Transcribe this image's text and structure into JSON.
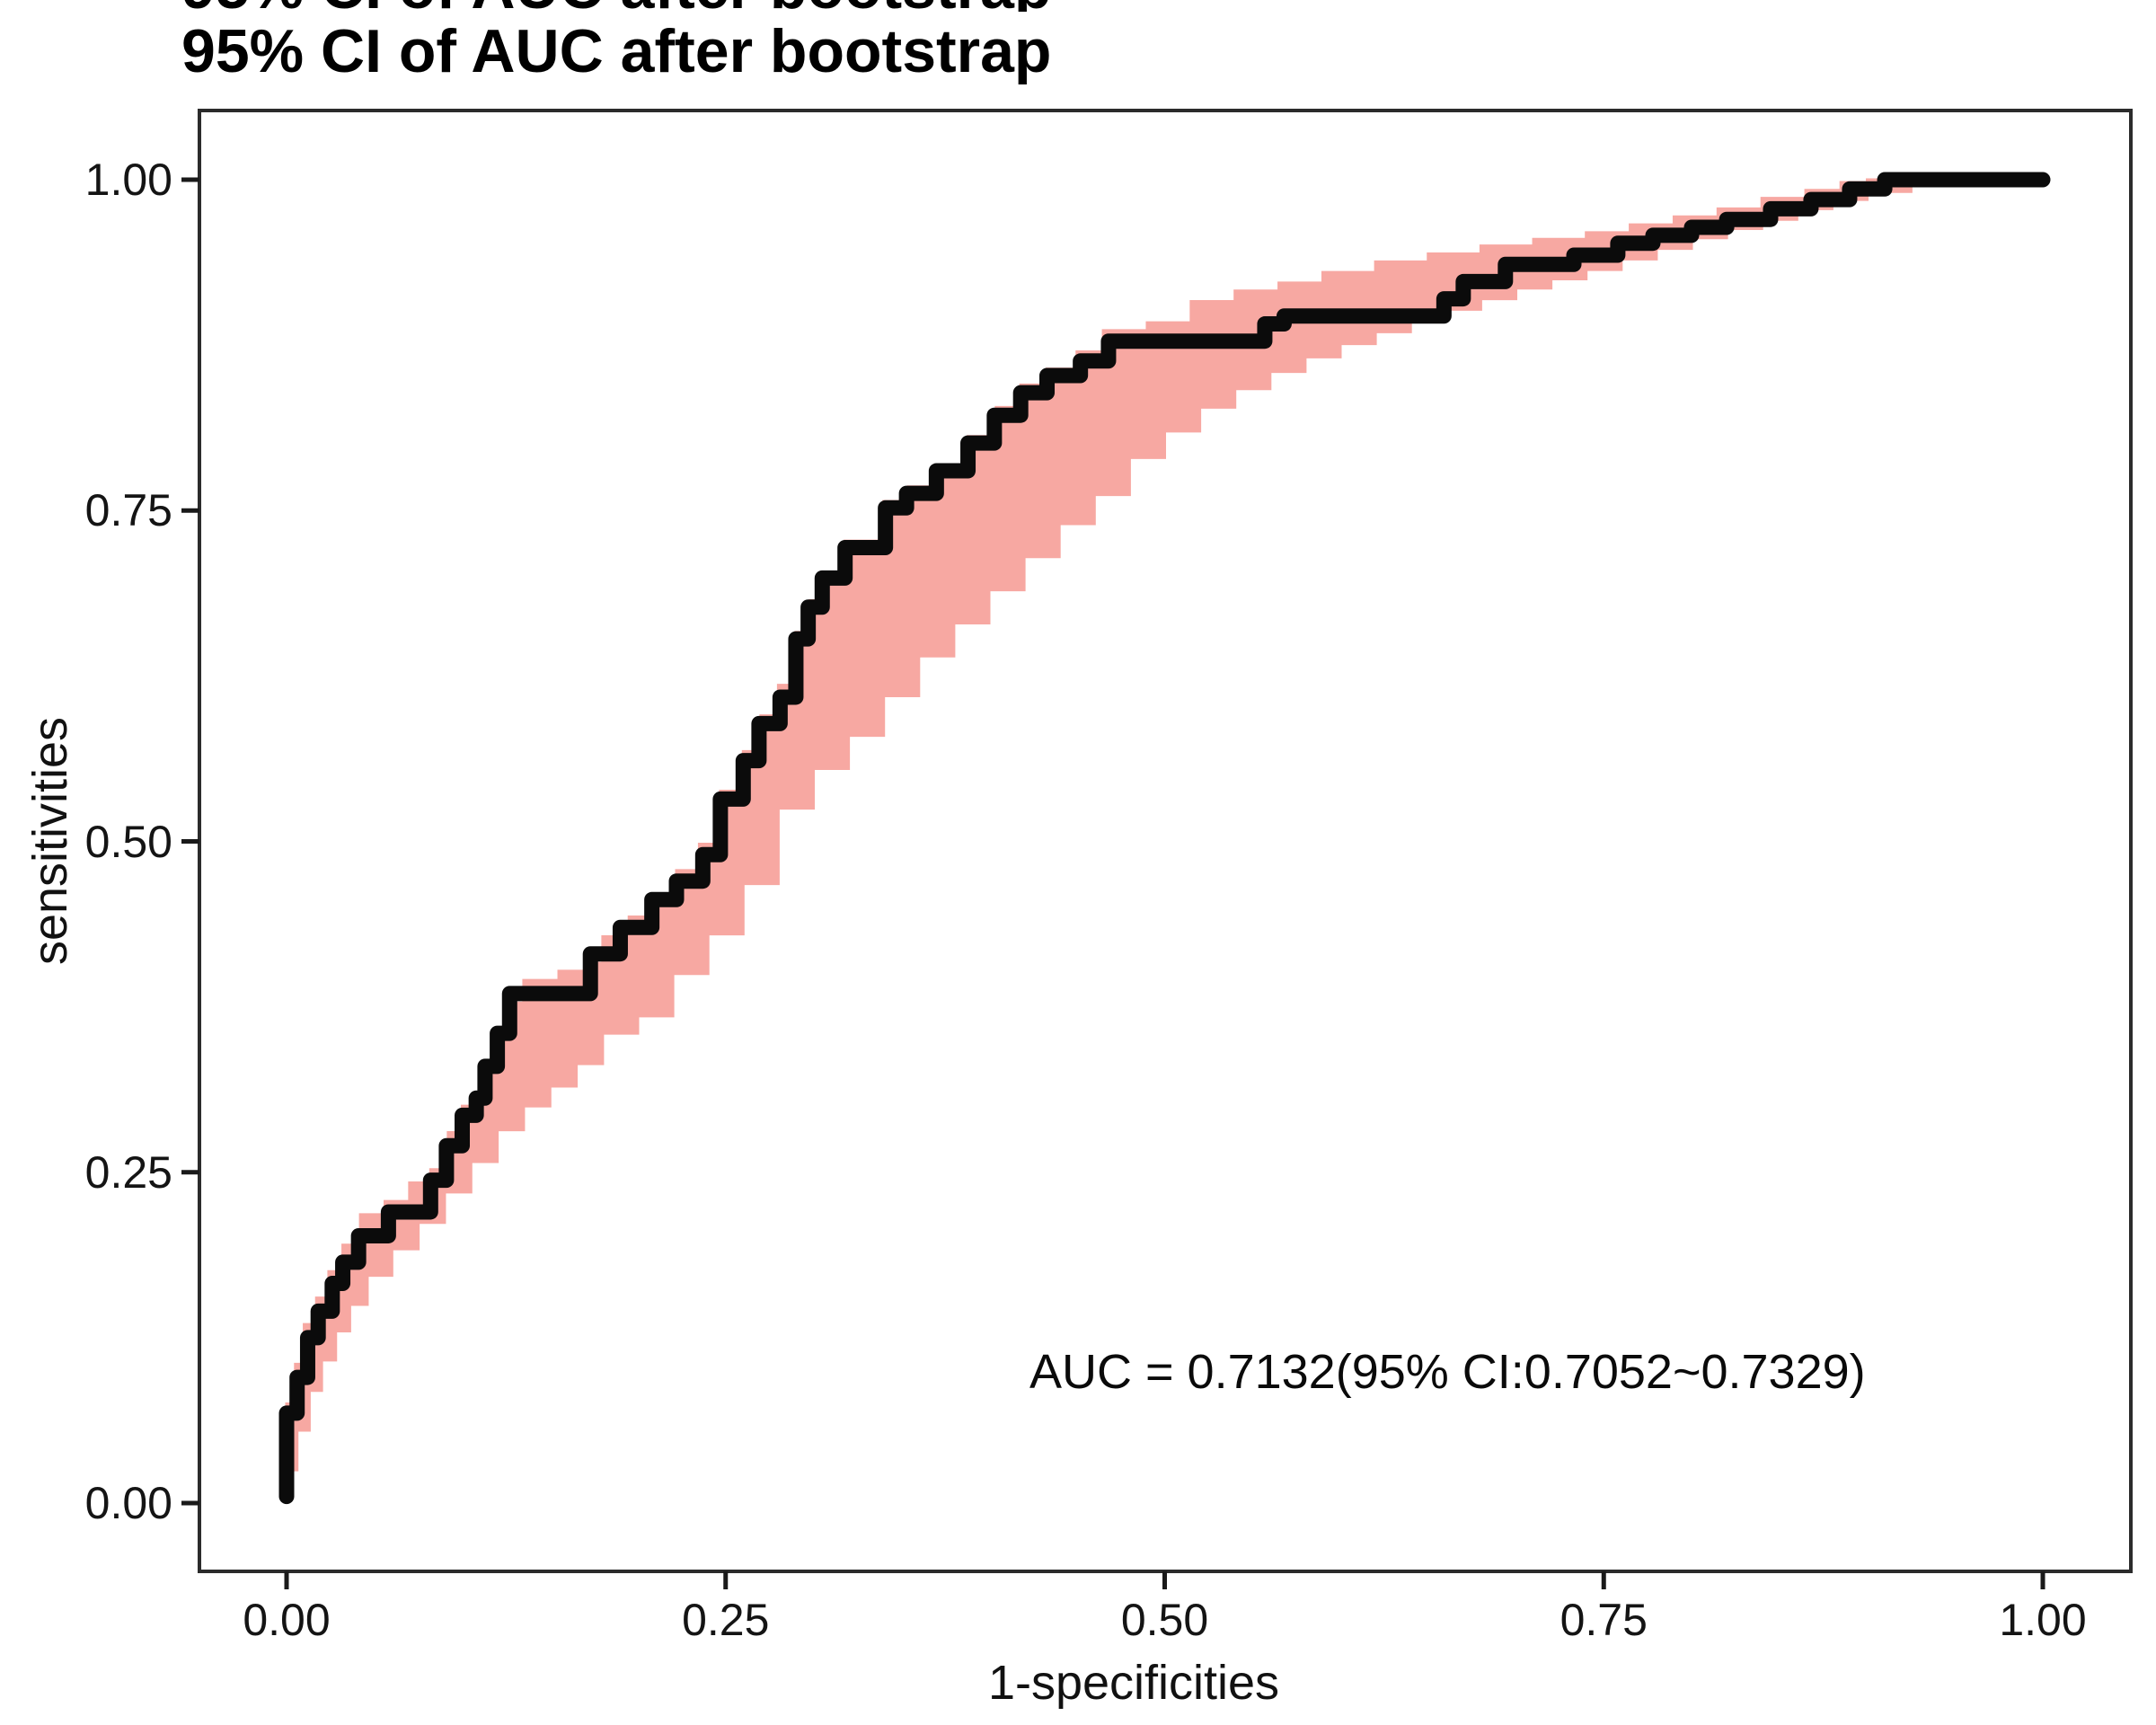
{
  "top_clipped_text": "95% CI of AUC after bootstrap",
  "title": "95% CI of AUC after bootstrap",
  "axes": {
    "x": {
      "label": "1-specificities",
      "range": [
        0,
        1
      ],
      "ticks": [
        {
          "value": 0,
          "label": "0.00"
        },
        {
          "value": 0.25,
          "label": "0.25"
        },
        {
          "value": 0.5,
          "label": "0.50"
        },
        {
          "value": 0.75,
          "label": "0.75"
        },
        {
          "value": 1,
          "label": "1.00"
        }
      ]
    },
    "y": {
      "label": "sensitivities",
      "range": [
        0,
        1
      ],
      "ticks": [
        {
          "value": 0,
          "label": "0.00"
        },
        {
          "value": 0.25,
          "label": "0.25"
        },
        {
          "value": 0.5,
          "label": "0.50"
        },
        {
          "value": 0.75,
          "label": "0.75"
        },
        {
          "value": 1,
          "label": "1.00"
        }
      ]
    }
  },
  "annotation": {
    "text": "AUC = 0.7132(95% CI:0.7052~0.7329)",
    "auc": "0.7132",
    "ci_low": "0.7052",
    "ci_high": "0.7329"
  },
  "colors": {
    "curve": "#0b0b0b",
    "band": "#f7a8a2",
    "axis": "#2b2b2b",
    "tick": "#1a1a1a",
    "background": "#ffffff"
  },
  "chart_data": {
    "type": "line",
    "title": "95% CI of AUC after bootstrap",
    "xlabel": "1-specificities",
    "ylabel": "sensitivities",
    "xlim": [
      0,
      1
    ],
    "ylim": [
      0,
      1
    ],
    "grid": false,
    "legend": false,
    "annotations": [
      {
        "text": "AUC = 0.7132(95% CI:0.7052~0.7329)"
      }
    ],
    "series": [
      {
        "name": "ROC curve",
        "style": "step",
        "color": "#0b0b0b",
        "points": [
          [
            0.0,
            0.005
          ],
          [
            0.0,
            0.068
          ],
          [
            0.006,
            0.068
          ],
          [
            0.006,
            0.095
          ],
          [
            0.012,
            0.095
          ],
          [
            0.012,
            0.125
          ],
          [
            0.018,
            0.125
          ],
          [
            0.018,
            0.145
          ],
          [
            0.026,
            0.145
          ],
          [
            0.026,
            0.166
          ],
          [
            0.032,
            0.166
          ],
          [
            0.032,
            0.182
          ],
          [
            0.041,
            0.182
          ],
          [
            0.041,
            0.202
          ],
          [
            0.058,
            0.202
          ],
          [
            0.058,
            0.22
          ],
          [
            0.082,
            0.22
          ],
          [
            0.082,
            0.244
          ],
          [
            0.091,
            0.244
          ],
          [
            0.091,
            0.27
          ],
          [
            0.1,
            0.27
          ],
          [
            0.1,
            0.293
          ],
          [
            0.108,
            0.293
          ],
          [
            0.108,
            0.306
          ],
          [
            0.113,
            0.306
          ],
          [
            0.113,
            0.33
          ],
          [
            0.12,
            0.33
          ],
          [
            0.12,
            0.355
          ],
          [
            0.127,
            0.355
          ],
          [
            0.127,
            0.385
          ],
          [
            0.173,
            0.385
          ],
          [
            0.173,
            0.415
          ],
          [
            0.19,
            0.415
          ],
          [
            0.19,
            0.435
          ],
          [
            0.208,
            0.435
          ],
          [
            0.208,
            0.456
          ],
          [
            0.222,
            0.456
          ],
          [
            0.222,
            0.47
          ],
          [
            0.237,
            0.47
          ],
          [
            0.237,
            0.49
          ],
          [
            0.247,
            0.49
          ],
          [
            0.247,
            0.532
          ],
          [
            0.26,
            0.532
          ],
          [
            0.26,
            0.561
          ],
          [
            0.269,
            0.561
          ],
          [
            0.269,
            0.589
          ],
          [
            0.281,
            0.589
          ],
          [
            0.281,
            0.609
          ],
          [
            0.29,
            0.609
          ],
          [
            0.29,
            0.653
          ],
          [
            0.297,
            0.653
          ],
          [
            0.297,
            0.677
          ],
          [
            0.305,
            0.677
          ],
          [
            0.305,
            0.699
          ],
          [
            0.318,
            0.699
          ],
          [
            0.318,
            0.722
          ],
          [
            0.341,
            0.722
          ],
          [
            0.341,
            0.752
          ],
          [
            0.353,
            0.752
          ],
          [
            0.353,
            0.763
          ],
          [
            0.37,
            0.763
          ],
          [
            0.37,
            0.78
          ],
          [
            0.388,
            0.78
          ],
          [
            0.388,
            0.801
          ],
          [
            0.403,
            0.801
          ],
          [
            0.403,
            0.822
          ],
          [
            0.418,
            0.822
          ],
          [
            0.418,
            0.839
          ],
          [
            0.433,
            0.839
          ],
          [
            0.433,
            0.852
          ],
          [
            0.452,
            0.852
          ],
          [
            0.452,
            0.863
          ],
          [
            0.468,
            0.863
          ],
          [
            0.468,
            0.878
          ],
          [
            0.557,
            0.878
          ],
          [
            0.557,
            0.891
          ],
          [
            0.568,
            0.891
          ],
          [
            0.568,
            0.897
          ],
          [
            0.659,
            0.897
          ],
          [
            0.659,
            0.91
          ],
          [
            0.67,
            0.91
          ],
          [
            0.67,
            0.923
          ],
          [
            0.694,
            0.923
          ],
          [
            0.694,
            0.936
          ],
          [
            0.733,
            0.936
          ],
          [
            0.733,
            0.943
          ],
          [
            0.758,
            0.943
          ],
          [
            0.758,
            0.952
          ],
          [
            0.778,
            0.952
          ],
          [
            0.778,
            0.958
          ],
          [
            0.8,
            0.958
          ],
          [
            0.8,
            0.964
          ],
          [
            0.82,
            0.964
          ],
          [
            0.82,
            0.97
          ],
          [
            0.845,
            0.97
          ],
          [
            0.845,
            0.978
          ],
          [
            0.868,
            0.978
          ],
          [
            0.868,
            0.985
          ],
          [
            0.89,
            0.985
          ],
          [
            0.89,
            0.993
          ],
          [
            0.91,
            0.993
          ],
          [
            0.91,
            1.0
          ],
          [
            0.926,
            1.0
          ],
          [
            1.0,
            1.0
          ]
        ]
      },
      {
        "name": "95% CI band upper edge",
        "style": "band-edge",
        "color": "#f7a8a2",
        "points": [
          [
            0.0,
            0.01
          ],
          [
            0.0,
            0.075
          ],
          [
            0.005,
            0.105
          ],
          [
            0.01,
            0.135
          ],
          [
            0.017,
            0.155
          ],
          [
            0.024,
            0.175
          ],
          [
            0.032,
            0.195
          ],
          [
            0.042,
            0.218
          ],
          [
            0.056,
            0.228
          ],
          [
            0.07,
            0.242
          ],
          [
            0.082,
            0.252
          ],
          [
            0.092,
            0.28
          ],
          [
            0.1,
            0.3
          ],
          [
            0.11,
            0.33
          ],
          [
            0.12,
            0.355
          ],
          [
            0.128,
            0.378
          ],
          [
            0.135,
            0.395
          ],
          [
            0.155,
            0.402
          ],
          [
            0.172,
            0.408
          ],
          [
            0.18,
            0.428
          ],
          [
            0.195,
            0.443
          ],
          [
            0.208,
            0.46
          ],
          [
            0.222,
            0.478
          ],
          [
            0.235,
            0.498
          ],
          [
            0.247,
            0.538
          ],
          [
            0.26,
            0.568
          ],
          [
            0.27,
            0.595
          ],
          [
            0.28,
            0.618
          ],
          [
            0.29,
            0.658
          ],
          [
            0.298,
            0.682
          ],
          [
            0.306,
            0.703
          ],
          [
            0.318,
            0.727
          ],
          [
            0.34,
            0.757
          ],
          [
            0.354,
            0.768
          ],
          [
            0.37,
            0.784
          ],
          [
            0.388,
            0.806
          ],
          [
            0.404,
            0.828
          ],
          [
            0.418,
            0.845
          ],
          [
            0.433,
            0.857
          ],
          [
            0.45,
            0.87
          ],
          [
            0.465,
            0.886
          ],
          [
            0.49,
            0.892
          ],
          [
            0.515,
            0.908
          ],
          [
            0.54,
            0.916
          ],
          [
            0.565,
            0.922
          ],
          [
            0.59,
            0.93
          ],
          [
            0.62,
            0.938
          ],
          [
            0.65,
            0.944
          ],
          [
            0.68,
            0.95
          ],
          [
            0.71,
            0.955
          ],
          [
            0.74,
            0.96
          ],
          [
            0.765,
            0.966
          ],
          [
            0.79,
            0.972
          ],
          [
            0.815,
            0.978
          ],
          [
            0.84,
            0.986
          ],
          [
            0.865,
            0.992
          ],
          [
            0.885,
            0.998
          ],
          [
            0.9,
            1.0
          ],
          [
            1.0,
            1.0
          ]
        ]
      },
      {
        "name": "95% CI band lower edge",
        "style": "band-edge",
        "color": "#f7a8a2",
        "points": [
          [
            0.0,
            0.0
          ],
          [
            0.006,
            0.025
          ],
          [
            0.013,
            0.055
          ],
          [
            0.02,
            0.085
          ],
          [
            0.028,
            0.108
          ],
          [
            0.036,
            0.13
          ],
          [
            0.046,
            0.15
          ],
          [
            0.06,
            0.172
          ],
          [
            0.075,
            0.192
          ],
          [
            0.09,
            0.212
          ],
          [
            0.105,
            0.235
          ],
          [
            0.12,
            0.258
          ],
          [
            0.135,
            0.282
          ],
          [
            0.15,
            0.3
          ],
          [
            0.165,
            0.315
          ],
          [
            0.18,
            0.332
          ],
          [
            0.2,
            0.355
          ],
          [
            0.22,
            0.368
          ],
          [
            0.24,
            0.4
          ],
          [
            0.26,
            0.43
          ],
          [
            0.28,
            0.468
          ],
          [
            0.3,
            0.525
          ],
          [
            0.32,
            0.555
          ],
          [
            0.34,
            0.58
          ],
          [
            0.36,
            0.61
          ],
          [
            0.38,
            0.64
          ],
          [
            0.4,
            0.665
          ],
          [
            0.42,
            0.69
          ],
          [
            0.44,
            0.715
          ],
          [
            0.46,
            0.74
          ],
          [
            0.48,
            0.762
          ],
          [
            0.5,
            0.79
          ],
          [
            0.52,
            0.81
          ],
          [
            0.54,
            0.828
          ],
          [
            0.56,
            0.842
          ],
          [
            0.58,
            0.855
          ],
          [
            0.6,
            0.866
          ],
          [
            0.62,
            0.876
          ],
          [
            0.64,
            0.885
          ],
          [
            0.66,
            0.894
          ],
          [
            0.68,
            0.902
          ],
          [
            0.7,
            0.91
          ],
          [
            0.72,
            0.918
          ],
          [
            0.74,
            0.925
          ],
          [
            0.76,
            0.932
          ],
          [
            0.78,
            0.94
          ],
          [
            0.8,
            0.948
          ],
          [
            0.82,
            0.956
          ],
          [
            0.84,
            0.963
          ],
          [
            0.86,
            0.97
          ],
          [
            0.88,
            0.978
          ],
          [
            0.9,
            0.985
          ],
          [
            0.925,
            0.991
          ],
          [
            0.955,
            0.996
          ],
          [
            0.985,
            1.0
          ],
          [
            1.0,
            1.0
          ]
        ]
      }
    ]
  }
}
